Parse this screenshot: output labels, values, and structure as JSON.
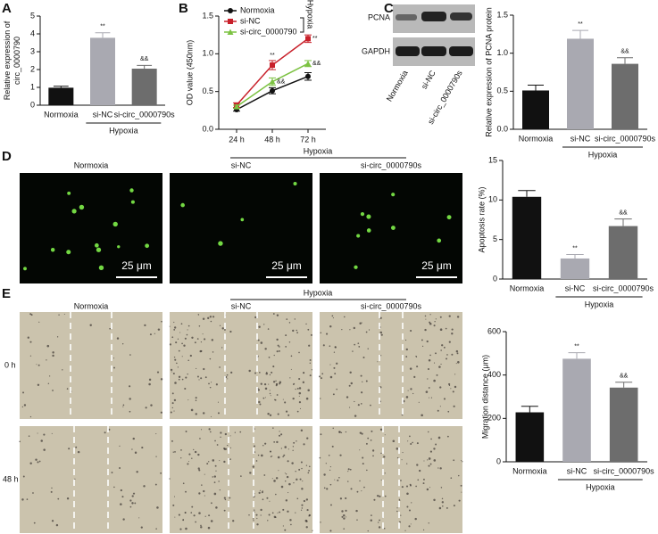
{
  "chart_data": [
    {
      "type": "bar",
      "panel": "A",
      "ylabel": [
        "Relative expression of",
        "circ_0000790"
      ],
      "categories": [
        "Normoxia",
        "si-NC",
        "si-circ_0000790s"
      ],
      "values": [
        0.98,
        3.78,
        2.05
      ],
      "errors": [
        0.08,
        0.28,
        0.18
      ],
      "colors": [
        "#111111",
        "#a9a9b1",
        "#6d6d6d"
      ],
      "significance": [
        null,
        "**",
        "&&"
      ],
      "group_label": "Hypoxia",
      "ylim": [
        0,
        5
      ],
      "yticks": [
        0,
        1,
        2,
        3,
        4,
        5
      ]
    },
    {
      "type": "line",
      "panel": "B",
      "ylabel": [
        "OD value (450nm)"
      ],
      "categories": [
        "24 h",
        "48 h",
        "72 h"
      ],
      "series": [
        {
          "name": "Normoxia",
          "color": "#111111",
          "marker": "circle",
          "values": [
            0.26,
            0.51,
            0.7
          ],
          "errors": [
            0.02,
            0.04,
            0.05
          ]
        },
        {
          "name": "si-NC",
          "color": "#c8202a",
          "marker": "square",
          "values": [
            0.32,
            0.85,
            1.2
          ],
          "errors": [
            0.03,
            0.06,
            0.05
          ],
          "significance": [
            null,
            "**",
            "**"
          ]
        },
        {
          "name": "si-circ_0000790",
          "color": "#7cc242",
          "marker": "triangle",
          "values": [
            0.3,
            0.63,
            0.87
          ],
          "errors": [
            0.02,
            0.05,
            0.04
          ],
          "significance": [
            null,
            "&&",
            "&&"
          ]
        }
      ],
      "bracket_label": "Hypoxia",
      "ylim": [
        0,
        1.5
      ],
      "yticks": [
        {
          "value": 0,
          "label": "0.0"
        },
        0.5,
        {
          "value": 1,
          "label": "1.0"
        },
        1.5
      ]
    },
    {
      "type": "bar",
      "panel": "C",
      "ylabel": [
        "Relative expression of PCNA protein"
      ],
      "categories": [
        "Normoxia",
        "si-NC",
        "si-circ_0000790s"
      ],
      "values": [
        0.51,
        1.19,
        0.86
      ],
      "errors": [
        0.07,
        0.11,
        0.08
      ],
      "colors": [
        "#111111",
        "#a9a9b1",
        "#6d6d6d"
      ],
      "significance": [
        null,
        "**",
        "&&"
      ],
      "group_label": "Hypoxia",
      "blot": {
        "proteins": [
          "PCNA",
          "GAPDH"
        ],
        "lanes": [
          "Normoxia",
          "si-NC",
          "si-circ_0000790s"
        ]
      },
      "ylim": [
        0,
        1.5
      ],
      "yticks": [
        {
          "value": 0,
          "label": "0.0"
        },
        0.5,
        {
          "value": 1,
          "label": "1.0"
        },
        1.5
      ]
    },
    {
      "type": "bar",
      "panel": "D",
      "ylabel": [
        "Apoptosis rate (%)"
      ],
      "categories": [
        "Normoxia",
        "si-NC",
        "si-circ_0000790s"
      ],
      "values": [
        10.4,
        2.6,
        6.7
      ],
      "errors": [
        0.8,
        0.5,
        0.9
      ],
      "colors": [
        "#111111",
        "#a9a9b1",
        "#6d6d6d"
      ],
      "significance": [
        null,
        "**",
        "&&"
      ],
      "group_label": "Hypoxia",
      "images": {
        "columns": [
          "Normoxia",
          "si-NC",
          "si-circ_0000790s"
        ],
        "group": "Hypoxia",
        "scale_bars": [
          "25 μm",
          "25 μm",
          "25 μm"
        ]
      },
      "ylim": [
        0,
        15
      ],
      "yticks": [
        0,
        5,
        10,
        15
      ]
    },
    {
      "type": "bar",
      "panel": "E",
      "ylabel": [
        "Migration distance (μm)"
      ],
      "categories": [
        "Normoxia",
        "si-NC",
        "si-circ_0000790s"
      ],
      "values": [
        228,
        475,
        342
      ],
      "errors": [
        28,
        28,
        25
      ],
      "colors": [
        "#111111",
        "#a9a9b1",
        "#6d6d6d"
      ],
      "significance": [
        null,
        "**",
        "&&"
      ],
      "group_label": "Hypoxia",
      "images": {
        "columns": [
          "Normoxia",
          "si-NC",
          "si-circ_0000790s"
        ],
        "group": "Hypoxia",
        "rows": [
          "0 h",
          "48 h"
        ]
      },
      "ylim": [
        0,
        600
      ],
      "yticks": [
        0,
        200,
        400,
        600
      ]
    }
  ]
}
